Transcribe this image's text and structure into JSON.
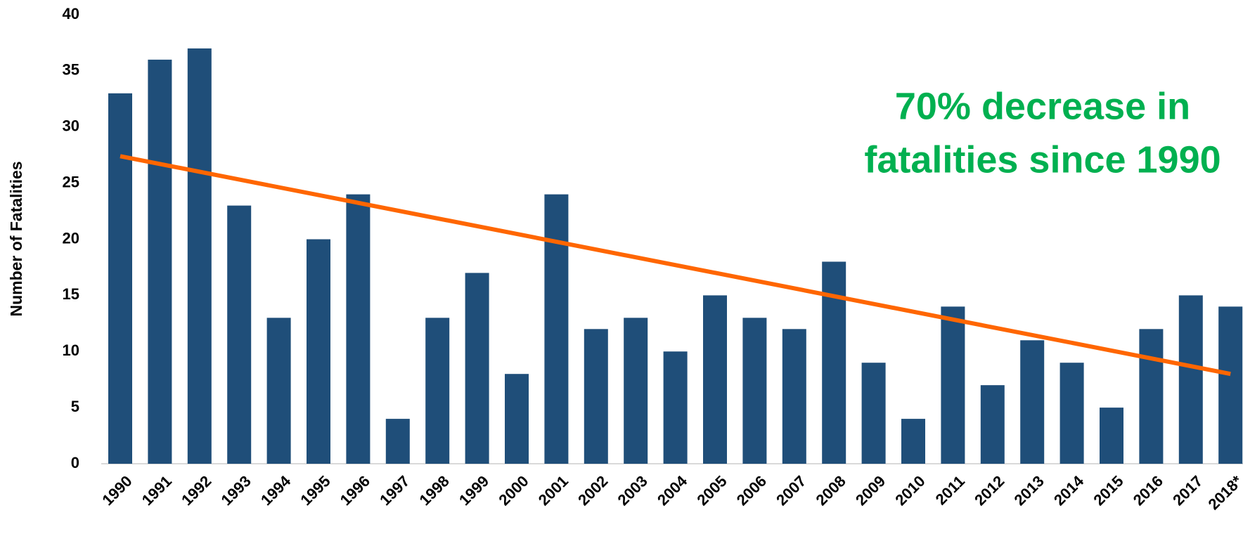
{
  "chart_data": {
    "type": "bar",
    "y_label": "Number of Fatalities",
    "annotation": [
      "70% decrease in",
      "fatalities since 1990"
    ],
    "annotation_color": "#00b050",
    "categories": [
      "1990",
      "1991",
      "1992",
      "1993",
      "1994",
      "1995",
      "1996",
      "1997",
      "1998",
      "1999",
      "2000",
      "2001",
      "2002",
      "2003",
      "2004",
      "2005",
      "2006",
      "2007",
      "2008",
      "2009",
      "2010",
      "2011",
      "2012",
      "2013",
      "2014",
      "2015",
      "2016",
      "2017",
      "2018*"
    ],
    "values": [
      33,
      36,
      37,
      23,
      13,
      20,
      24,
      4,
      13,
      17,
      8,
      24,
      12,
      13,
      10,
      15,
      13,
      12,
      18,
      9,
      4,
      14,
      7,
      11,
      9,
      5,
      12,
      15,
      14
    ],
    "color": "#1f4e79",
    "trendline": {
      "color": "#ff6600",
      "start": 27.4,
      "end": 8
    },
    "ylim": [
      0,
      40
    ],
    "yticks": [
      0,
      5,
      10,
      15,
      20,
      25,
      30,
      35,
      40
    ],
    "grid": false
  }
}
